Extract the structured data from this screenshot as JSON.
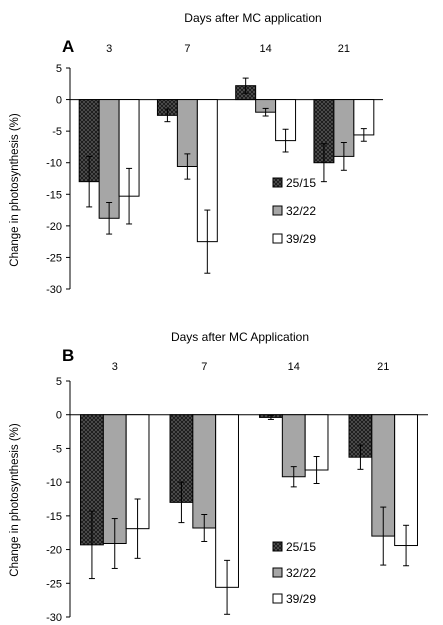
{
  "chart_data": [
    {
      "panel": "A",
      "type": "bar",
      "title": "Days after MC application",
      "ylabel": "Change in photosynthesis (%)",
      "categories": [
        "3",
        "7",
        "14",
        "21"
      ],
      "ylim": [
        -30,
        5
      ],
      "yticks": [
        5,
        0,
        -5,
        -10,
        -15,
        -20,
        -25,
        -30
      ],
      "legend_position": "center-right",
      "series": [
        {
          "name": "25/15",
          "pattern": "crosshatch",
          "color": "#333333",
          "values": [
            -13,
            -2.5,
            2.2,
            -10
          ],
          "errors": [
            4,
            1,
            1.2,
            3
          ]
        },
        {
          "name": "32/22",
          "pattern": "solid",
          "color": "#a6a6a6",
          "values": [
            -18.8,
            -10.6,
            -2,
            -9
          ],
          "errors": [
            2.5,
            2,
            0.6,
            2.2
          ]
        },
        {
          "name": "39/29",
          "pattern": "solid",
          "color": "#ffffff",
          "values": [
            -15.3,
            -22.5,
            -6.5,
            -5.6
          ],
          "errors": [
            4.4,
            5,
            1.8,
            1
          ]
        }
      ]
    },
    {
      "panel": "B",
      "type": "bar",
      "title": "Days after MC Application",
      "ylabel": "Change in photosynthesis (%)",
      "categories": [
        "3",
        "7",
        "14",
        "21"
      ],
      "ylim": [
        -30,
        5
      ],
      "yticks": [
        5,
        0,
        -5,
        -10,
        -15,
        -20,
        -25,
        -30
      ],
      "legend_position": "bottom-center",
      "series": [
        {
          "name": "25/15",
          "pattern": "crosshatch",
          "color": "#333333",
          "values": [
            -19.3,
            -13,
            -0.4,
            -6.3
          ],
          "errors": [
            5,
            3,
            0.3,
            1.8
          ]
        },
        {
          "name": "32/22",
          "pattern": "solid",
          "color": "#a6a6a6",
          "values": [
            -19.1,
            -16.8,
            -9.2,
            -18
          ],
          "errors": [
            3.7,
            2,
            1.5,
            4.3
          ]
        },
        {
          "name": "39/29",
          "pattern": "solid",
          "color": "#ffffff",
          "values": [
            -16.9,
            -25.6,
            -8.2,
            -19.4
          ],
          "errors": [
            4.4,
            4,
            2,
            3
          ]
        }
      ]
    }
  ]
}
